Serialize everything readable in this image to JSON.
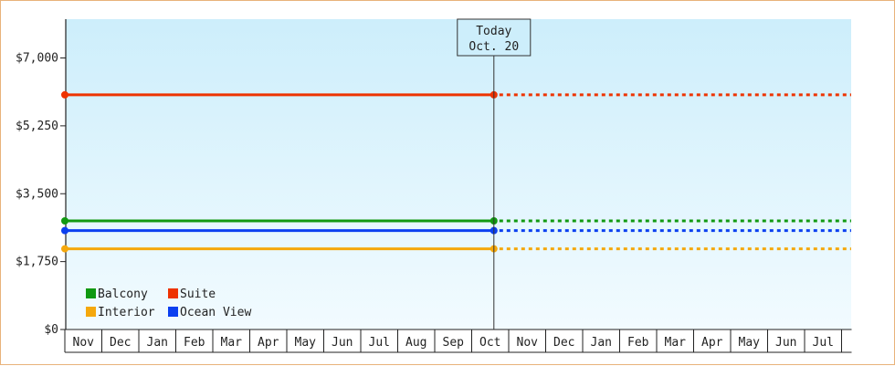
{
  "chart_data": {
    "type": "line",
    "title": "",
    "xlabel": "",
    "ylabel": "",
    "ylim": [
      0,
      8000
    ],
    "y_ticks": [
      {
        "value": 0,
        "label": "$0"
      },
      {
        "value": 1750,
        "label": "$1,750"
      },
      {
        "value": 3500,
        "label": "$3,500"
      },
      {
        "value": 5250,
        "label": "$5,250"
      },
      {
        "value": 7000,
        "label": "$7,000"
      }
    ],
    "months": [
      "Nov",
      "Dec",
      "Jan",
      "Feb",
      "Mar",
      "Apr",
      "May",
      "Jun",
      "Jul",
      "Aug",
      "Sep",
      "Oct",
      "Nov",
      "Dec",
      "Jan",
      "Feb",
      "Mar",
      "Apr",
      "May",
      "Jun",
      "Jul"
    ],
    "today": {
      "line1": "Today",
      "line2": "Oct. 20",
      "month_index": 11.6
    },
    "x_actual_range": [
      0,
      11.6
    ],
    "x_forecast_range": [
      11.6,
      21.2
    ],
    "series": [
      {
        "name": "Balcony",
        "color": "#119911",
        "value": 2800
      },
      {
        "name": "Suite",
        "color": "#ee3300",
        "value": 6050
      },
      {
        "name": "Interior",
        "color": "#f5a80c",
        "value": 2080
      },
      {
        "name": "Ocean View",
        "color": "#0b3ff0",
        "value": 2550
      }
    ],
    "legend": {
      "placement": "bottom-left",
      "order": [
        "Balcony",
        "Suite",
        "Interior",
        "Ocean View"
      ]
    },
    "background_gradient": [
      "#cdeefb",
      "#f2fbff"
    ]
  }
}
